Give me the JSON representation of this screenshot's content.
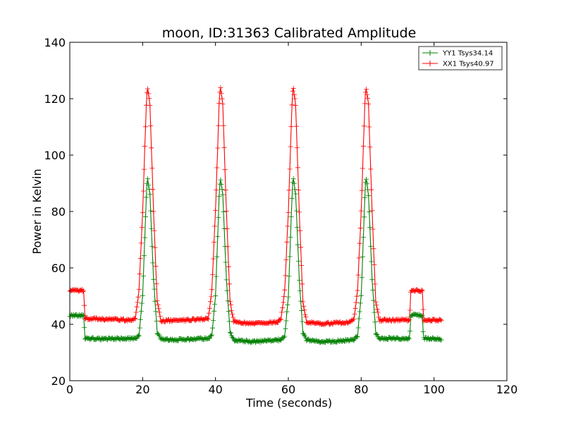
{
  "chart_data": {
    "type": "line",
    "title": "moon, ID:31363 Calibrated Amplitude",
    "xlabel": "Time (seconds)",
    "ylabel": "Power in Kelvin",
    "xlim": [
      0,
      120
    ],
    "ylim": [
      20,
      140
    ],
    "xticks": [
      0,
      20,
      40,
      60,
      80,
      100,
      120
    ],
    "yticks": [
      20,
      40,
      60,
      80,
      100,
      120,
      140
    ],
    "grid": false,
    "legend_position": "top-right",
    "markers": "plus",
    "series": [
      {
        "name": "YY1 Tsys34.14",
        "color": "#008000",
        "x": [
          0,
          3.9,
          4.1,
          10,
          18,
          19,
          20,
          21,
          21.3,
          22,
          23,
          24,
          25,
          30,
          38,
          39,
          40,
          41,
          41.3,
          42,
          43,
          44,
          45,
          50,
          58,
          59,
          60,
          61,
          61.3,
          62,
          63,
          64,
          65,
          70,
          78,
          79,
          80,
          81,
          81.3,
          82,
          83,
          84,
          85,
          93.3,
          93.6,
          94.5,
          96.8,
          97.1,
          102
        ],
        "y": [
          43.2,
          43,
          35,
          34.8,
          35,
          36,
          50,
          85,
          92.5,
          86,
          56,
          37,
          34.8,
          34.5,
          35,
          36,
          50,
          85,
          92.5,
          86,
          56,
          37,
          34.5,
          33.8,
          34.5,
          36,
          50,
          85,
          92.5,
          86,
          56,
          37,
          34.5,
          33.8,
          34.5,
          36,
          50,
          85,
          92.5,
          86,
          56,
          37,
          35,
          35,
          43,
          43.5,
          43,
          35,
          34.8
        ]
      },
      {
        "name": "XX1 Tsys40.97",
        "color": "#ff0000",
        "x": [
          0,
          3.9,
          4.1,
          10,
          17,
          18,
          19,
          20,
          21,
          21.3,
          22,
          23,
          24,
          25,
          30,
          37,
          38,
          39,
          40,
          41,
          41.3,
          42,
          43,
          44,
          45,
          50,
          57,
          58,
          59,
          60,
          61,
          61.3,
          62,
          63,
          64,
          65,
          70,
          77,
          78,
          79,
          80,
          81,
          81.3,
          82,
          83,
          84,
          85,
          93.3,
          93.6,
          94.5,
          96.8,
          97.1,
          102
        ],
        "y": [
          52,
          52,
          42,
          41.8,
          41.5,
          42,
          52,
          80,
          118,
          124.5,
          118,
          80,
          48,
          41.2,
          41.4,
          41.8,
          42,
          52,
          80,
          118,
          124.5,
          118,
          80,
          48,
          41,
          40.2,
          40.8,
          42,
          52,
          80,
          118,
          124.5,
          118,
          80,
          48,
          40.8,
          40.2,
          40.8,
          42,
          52,
          80,
          118,
          124.5,
          118,
          80,
          48,
          41.5,
          41.5,
          51.8,
          52,
          51.8,
          41.5,
          41.5
        ]
      }
    ]
  }
}
